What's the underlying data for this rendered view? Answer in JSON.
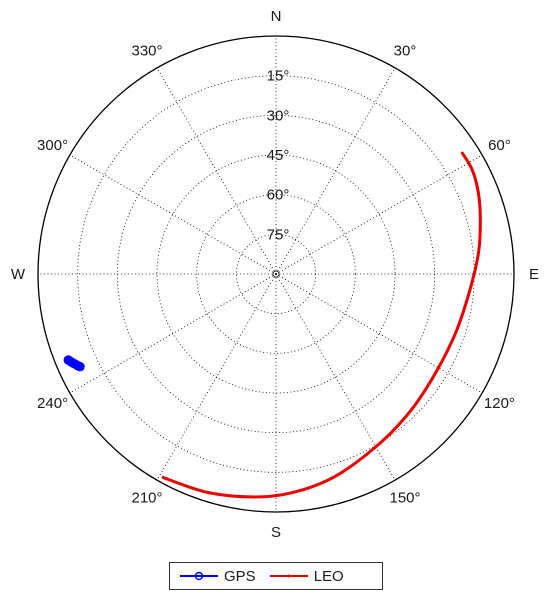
{
  "chart_data": {
    "type": "scatter",
    "subtype": "polar-skyplot",
    "title": "",
    "azimuth_ticks": [
      {
        "az": 0,
        "label": "N"
      },
      {
        "az": 30,
        "label": "30°"
      },
      {
        "az": 60,
        "label": "60°"
      },
      {
        "az": 90,
        "label": "E"
      },
      {
        "az": 120,
        "label": "120°"
      },
      {
        "az": 150,
        "label": "150°"
      },
      {
        "az": 180,
        "label": "S"
      },
      {
        "az": 210,
        "label": "210°"
      },
      {
        "az": 240,
        "label": "240°"
      },
      {
        "az": 270,
        "label": "W"
      },
      {
        "az": 300,
        "label": "300°"
      },
      {
        "az": 330,
        "label": "330°"
      }
    ],
    "elevation_ticks": [
      15,
      30,
      45,
      60,
      75
    ],
    "elevation_tick_labels": [
      "15°",
      "30°",
      "45°",
      "60°",
      "75°"
    ],
    "elevation_range": [
      0,
      90
    ],
    "grid": true,
    "legend_position": "bottom",
    "series": [
      {
        "name": "GPS",
        "color": "#0000ff",
        "marker": "circle",
        "points": [
          {
            "az": 247.5,
            "el": 5.0
          },
          {
            "az": 246.9,
            "el": 5.6
          },
          {
            "az": 246.3,
            "el": 6.2
          },
          {
            "az": 245.8,
            "el": 6.8
          },
          {
            "az": 245.2,
            "el": 7.4
          },
          {
            "az": 244.7,
            "el": 8.0
          }
        ]
      },
      {
        "name": "LEO",
        "color": "#ee0000",
        "marker": "none",
        "points": [
          {
            "az": 57,
            "el": 6
          },
          {
            "az": 62,
            "el": 6
          },
          {
            "az": 68,
            "el": 7.5
          },
          {
            "az": 75,
            "el": 10
          },
          {
            "az": 84,
            "el": 13
          },
          {
            "az": 95,
            "el": 16.5
          },
          {
            "az": 108,
            "el": 18.5
          },
          {
            "az": 122,
            "el": 19
          },
          {
            "az": 135,
            "el": 17.5
          },
          {
            "az": 148,
            "el": 15
          },
          {
            "az": 163,
            "el": 10.5
          },
          {
            "az": 174,
            "el": 7.5
          },
          {
            "az": 184,
            "el": 5.5
          },
          {
            "az": 197,
            "el": 3.5
          },
          {
            "az": 209,
            "el": 2
          }
        ]
      }
    ]
  }
}
